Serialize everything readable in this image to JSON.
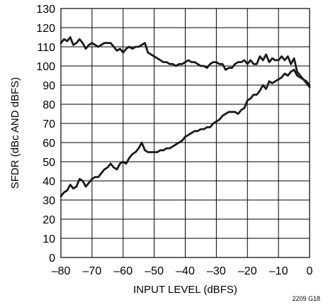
{
  "chart_data": {
    "type": "line",
    "xlabel": "INPUT LEVEL (dBFS)",
    "ylabel": "SFDR (dBc AND  dBFS)",
    "figure_id": "2209 G18",
    "xlim": [
      -80,
      0
    ],
    "ylim": [
      0,
      130
    ],
    "x_ticks": [
      -80,
      -70,
      -60,
      -50,
      -40,
      -30,
      -20,
      -10,
      0
    ],
    "x_tick_labels": [
      "–80",
      "–70",
      "–60",
      "–50",
      "–40",
      "–30",
      "–20",
      "–10",
      "0"
    ],
    "y_ticks": [
      0,
      10,
      20,
      30,
      40,
      50,
      60,
      70,
      80,
      90,
      100,
      110,
      120,
      130
    ],
    "y_tick_labels": [
      "0",
      "10",
      "20",
      "30",
      "40",
      "50",
      "60",
      "70",
      "80",
      "90",
      "100",
      "110",
      "120",
      "130"
    ],
    "grid": true,
    "line_color": "#1a1a1a",
    "series": [
      {
        "x": [
          -80,
          -79,
          -78,
          -77,
          -76,
          -75,
          -74,
          -73,
          -72,
          -71,
          -70,
          -69,
          -68,
          -67,
          -66,
          -65,
          -64,
          -63,
          -62,
          -61,
          -60,
          -59,
          -58,
          -57,
          -56,
          -55,
          -54,
          -53,
          -52,
          -51,
          -50,
          -49,
          -48,
          -47,
          -46,
          -45,
          -44,
          -43,
          -42,
          -41,
          -40,
          -39,
          -38,
          -37,
          -36,
          -35,
          -34,
          -33,
          -32,
          -31,
          -30,
          -29,
          -28,
          -27,
          -26,
          -25,
          -24,
          -23,
          -22,
          -21,
          -20,
          -19,
          -18,
          -17,
          -16,
          -15,
          -14,
          -13,
          -12,
          -11,
          -10,
          -9,
          -8,
          -7,
          -6,
          -5,
          -4,
          -3,
          -2,
          -1,
          0
        ],
        "values": [
          112,
          114,
          113,
          115,
          111,
          112,
          114,
          112,
          109,
          111,
          112,
          111,
          110,
          111,
          112,
          112,
          112,
          110,
          108,
          109,
          107,
          109,
          110,
          109,
          110,
          110,
          111,
          112,
          107,
          106,
          105,
          104,
          103,
          102,
          102,
          101,
          101,
          100,
          101,
          101,
          102,
          103,
          102,
          102,
          101,
          100,
          100,
          99,
          101,
          102,
          102,
          101,
          101,
          98,
          99,
          99,
          101,
          102,
          102,
          103,
          101,
          103,
          101,
          101,
          105,
          103,
          106,
          102,
          104,
          103,
          103,
          105,
          103,
          105,
          101,
          104,
          97,
          95,
          93,
          92,
          90
        ]
      },
      {
        "x": [
          -80,
          -79,
          -78,
          -77,
          -76,
          -75,
          -74,
          -73,
          -72,
          -71,
          -70,
          -69,
          -68,
          -67,
          -66,
          -65,
          -64,
          -63,
          -62,
          -61,
          -60,
          -59,
          -58,
          -57,
          -56,
          -55,
          -54,
          -53,
          -52,
          -51,
          -50,
          -49,
          -48,
          -47,
          -46,
          -45,
          -44,
          -43,
          -42,
          -41,
          -40,
          -39,
          -38,
          -37,
          -36,
          -35,
          -34,
          -33,
          -32,
          -31,
          -30,
          -29,
          -28,
          -27,
          -26,
          -25,
          -24,
          -23,
          -22,
          -21,
          -20,
          -19,
          -18,
          -17,
          -16,
          -15,
          -14,
          -13,
          -12,
          -11,
          -10,
          -9,
          -8,
          -7,
          -6,
          -5,
          -4,
          -3,
          -2,
          -1,
          0
        ],
        "values": [
          32,
          34,
          35,
          38,
          36,
          37,
          41,
          40,
          37,
          39,
          41,
          42,
          42,
          44,
          46,
          47,
          49,
          47,
          46,
          49,
          50,
          49,
          52,
          54,
          55,
          57,
          60,
          56,
          55,
          55,
          55,
          55,
          56,
          56,
          57,
          57,
          58,
          59,
          60,
          61,
          63,
          64,
          65,
          66,
          66,
          67,
          67,
          68,
          68,
          70,
          71,
          72,
          74,
          75,
          76,
          76,
          76,
          75,
          77,
          78,
          82,
          83,
          85,
          85,
          87,
          90,
          88,
          92,
          91,
          92,
          93,
          94,
          96,
          95,
          97,
          98,
          95,
          94,
          93,
          91,
          89
        ]
      }
    ]
  }
}
